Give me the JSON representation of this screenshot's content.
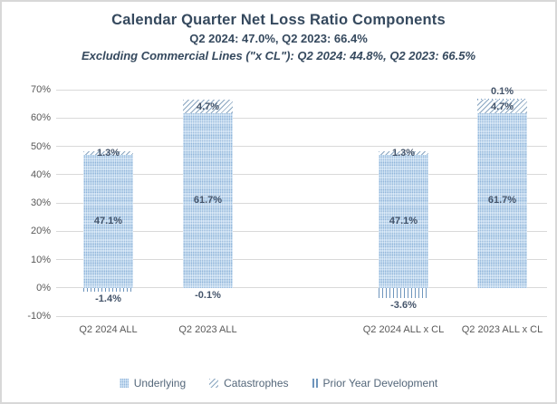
{
  "window": {
    "background_color": "#FFFFFF",
    "border_color": "#D8D8D8"
  },
  "chart_data": {
    "type": "bar",
    "stacked": true,
    "title": "Calendar Quarter Net Loss Ratio Components",
    "subtitle": "Q2 2024: 47.0%, Q2 2023: 66.4%",
    "subtitle2": "Excluding Commercial Lines (\"x CL\"): Q2 2024: 44.8%, Q2 2023: 66.5%",
    "categories": [
      "Q2 2024 ALL",
      "Q2 2023 ALL",
      "Q2 2024 ALL x CL",
      "Q2 2023 ALL x CL"
    ],
    "series": [
      {
        "name": "Underlying",
        "pattern": "dotted",
        "color": "#AECDEA",
        "values": [
          47.1,
          61.7,
          47.1,
          61.7
        ]
      },
      {
        "name": "Catastrophes",
        "pattern": "diagonal-hatch",
        "color": "#8CA7C1",
        "values": [
          1.3,
          4.7,
          1.3,
          4.7
        ]
      },
      {
        "name": "Prior Year Development",
        "pattern": "vertical-lines",
        "color": "#6E95BC",
        "values": [
          -1.4,
          -0.1,
          -3.6,
          0.1
        ]
      }
    ],
    "data_label_format": "0.0%",
    "ylim": [
      -10,
      70
    ],
    "y_tick_step": 10,
    "y_tick_labels": [
      "70%",
      "60%",
      "50%",
      "40%",
      "30%",
      "20%",
      "10%",
      "0%",
      "-10%"
    ],
    "grid": true,
    "legend_position": "bottom",
    "colors": {
      "gridline": "#D9D9D9",
      "title_text": "#35495E",
      "data_label_text": "#44546A",
      "axis_label_text": "#595959",
      "legend_text": "#54677A"
    }
  }
}
